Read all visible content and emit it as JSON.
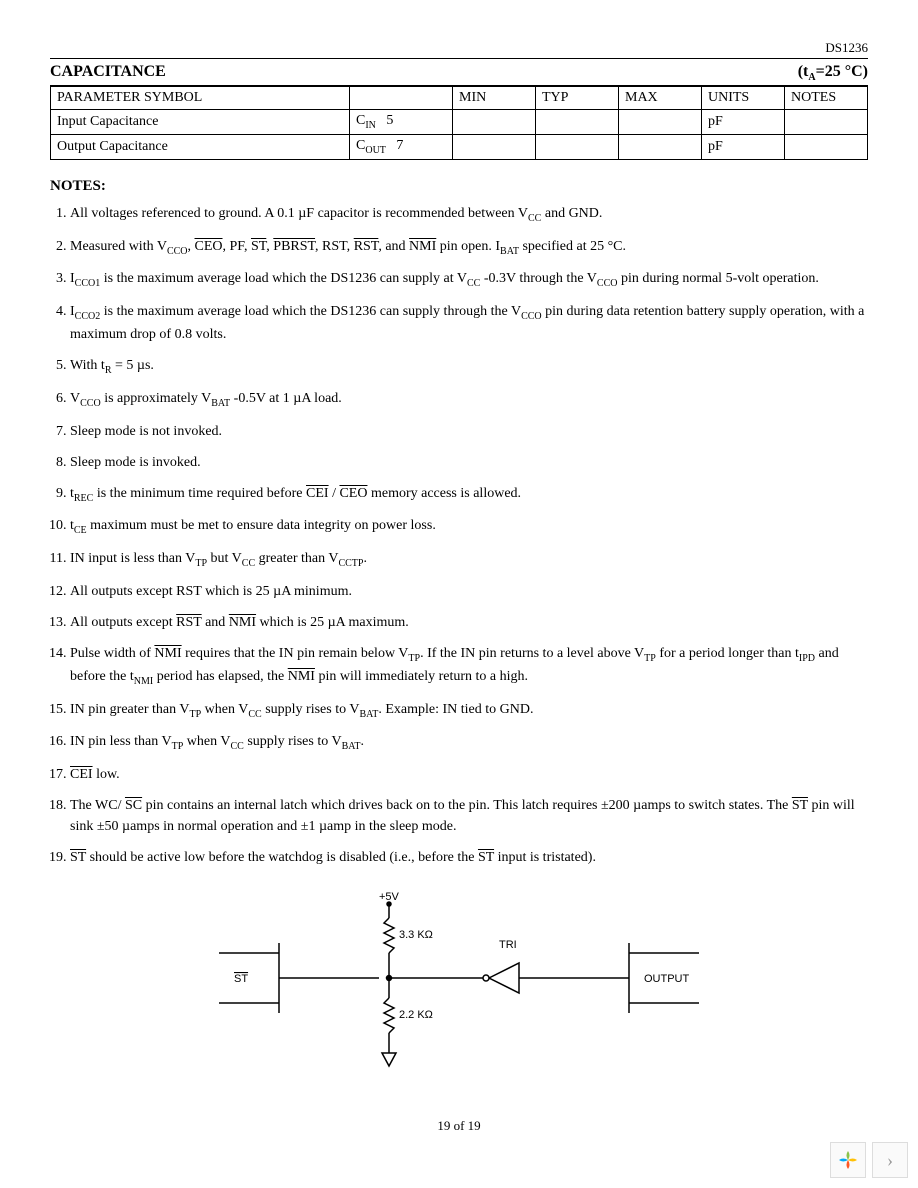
{
  "header": {
    "doc_id": "DS1236"
  },
  "section": {
    "title": "CAPACITANCE",
    "condition_prefix": "(t",
    "condition_sub": "A",
    "condition_suffix": "=25 °C)"
  },
  "table": {
    "headers": [
      "PARAMETER SYMBOL",
      "",
      "MIN",
      "TYP",
      "MAX",
      "UNITS",
      "NOTES"
    ],
    "rows": [
      {
        "param": "Input Capacitance",
        "sym": "C",
        "sym_sub": "IN",
        "val": "5",
        "units": "pF"
      },
      {
        "param": "Output Capacitance",
        "sym": "C",
        "sym_sub": "OUT",
        "val": "7",
        "units": "pF"
      }
    ]
  },
  "notes_title": "NOTES:",
  "notes": [
    "All voltages referenced to ground. A 0.1 µF capacitor is recommended between V|CC| and GND.",
    "Measured with V|CCO|, ~CEO~, PF, ~ST~, ~PBRST~, RST, ~RST~, and ~NMI~ pin open. I|BAT| specified at 25 °C.",
    "I|CCO1| is the maximum average load which the DS1236 can supply at V|CC| -0.3V through the V|CCO| pin during normal 5-volt operation.",
    "I|CCO2| is the maximum average load which the DS1236 can supply through the V|CCO| pin during data retention battery supply operation, with a maximum drop of 0.8 volts.",
    "With t|R| = 5 µs.",
    "V|CCO| is approximately V|BAT| -0.5V at 1 µA load.",
    "Sleep mode is not invoked.",
    "Sleep mode is invoked.",
    "t|REC| is the minimum time required before ~CEI~ / ~CEO~ memory access is allowed.",
    "t|CE| maximum must be met to ensure data integrity on power loss.",
    "IN input is less than V|TP| but V|CC| greater than V|CCTP|.",
    "All outputs except RST which is 25 µA minimum.",
    "All outputs except ~RST~ and ~NMI~ which is 25 µA maximum.",
    "Pulse width of ~NMI~ requires that the IN pin remain below V|TP|. If the IN pin returns to a level above V|TP| for a period longer than t|IPD| and before the t|NMI| period has elapsed, the ~NMI~ pin will immediately return to a high.",
    "IN pin greater than V|TP| when V|CC| supply rises to V|BAT|. Example: IN tied to GND.",
    "IN pin less than V|TP| when V|CC| supply rises to V|BAT|.",
    "~CEI~ low.",
    "The WC/ ~SC~ pin contains an internal latch which drives back on to the pin. This latch requires ±200 µamps to switch states. The ~ST~ pin will sink ±50 µamps in normal operation and ±1 µamp in the sleep mode.",
    "~ST~ should be active low before the watchdog is disabled (i.e., before the ~ST~ input is tristated)."
  ],
  "diagram": {
    "v_label": "+5V",
    "r1": "3.3 KΩ",
    "r2": "2.2 KΩ",
    "left_pin": "ST",
    "tri_label": "TRI",
    "right_pin": "OUTPUT",
    "colors": {
      "stroke": "#000000",
      "bg": "#ffffff"
    }
  },
  "footer": {
    "page": "19 of 19"
  },
  "corner": {
    "chevron": "›"
  }
}
